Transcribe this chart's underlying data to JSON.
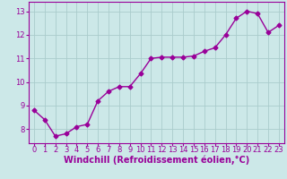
{
  "x": [
    0,
    1,
    2,
    3,
    4,
    5,
    6,
    7,
    8,
    9,
    10,
    11,
    12,
    13,
    14,
    15,
    16,
    17,
    18,
    19,
    20,
    21,
    22,
    23
  ],
  "y": [
    8.8,
    8.4,
    7.7,
    7.8,
    8.1,
    8.2,
    9.2,
    9.6,
    9.8,
    9.8,
    10.35,
    11.0,
    11.05,
    11.05,
    11.05,
    11.1,
    11.3,
    11.45,
    12.0,
    12.7,
    13.0,
    12.9,
    12.1,
    12.4
  ],
  "line_color": "#990099",
  "marker": "D",
  "marker_size": 2.5,
  "bg_color": "#cce8e8",
  "grid_color": "#aacccc",
  "xlabel": "Windchill (Refroidissement éolien,°C)",
  "xlabel_color": "#990099",
  "ylim": [
    7.4,
    13.4
  ],
  "xlim": [
    -0.5,
    23.5
  ],
  "yticks": [
    8,
    9,
    10,
    11,
    12,
    13
  ],
  "xticks": [
    0,
    1,
    2,
    3,
    4,
    5,
    6,
    7,
    8,
    9,
    10,
    11,
    12,
    13,
    14,
    15,
    16,
    17,
    18,
    19,
    20,
    21,
    22,
    23
  ],
  "tick_color": "#990099",
  "tick_fontsize": 6,
  "xlabel_fontsize": 7,
  "line_width": 1.0
}
